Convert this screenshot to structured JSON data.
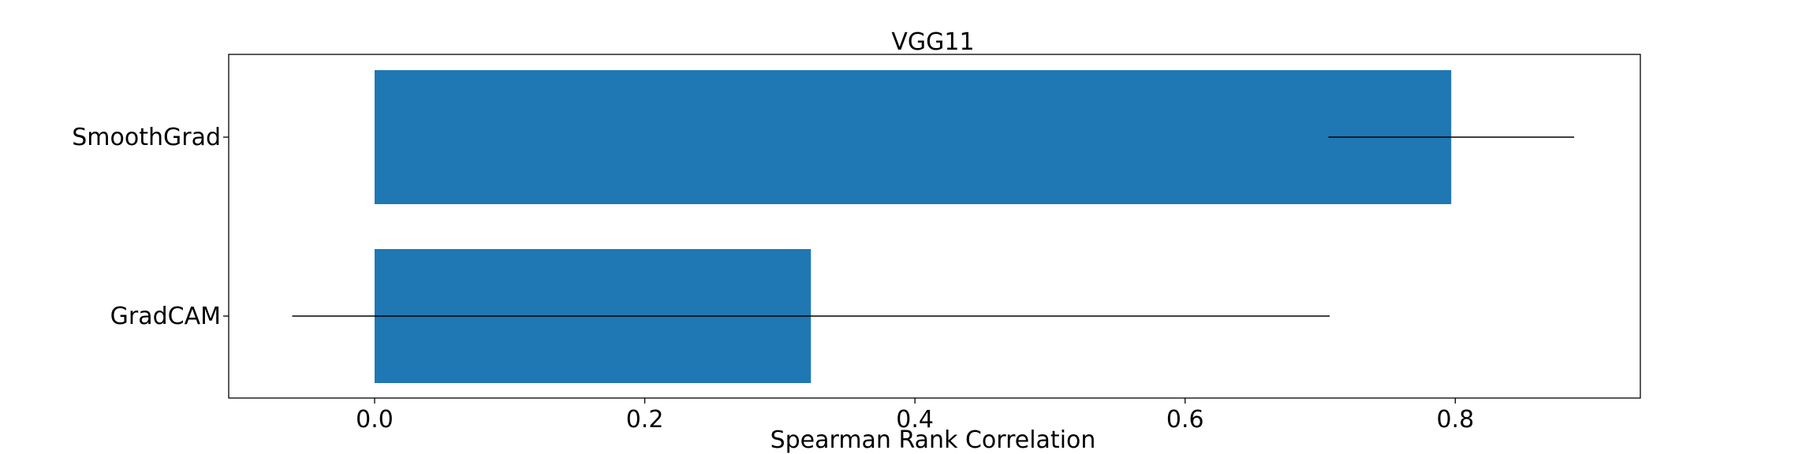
{
  "chart_data": {
    "type": "bar",
    "orientation": "horizontal",
    "title": "VGG11",
    "xlabel": "Spearman Rank Correlation",
    "ylabel": "",
    "categories": [
      "SmoothGrad",
      "GradCAM"
    ],
    "values": [
      0.797,
      0.323
    ],
    "error_bars": [
      {
        "low": 0.706,
        "high": 0.888
      },
      {
        "low": -0.061,
        "high": 0.707
      }
    ],
    "xlim": [
      -0.108,
      0.937
    ],
    "xticks": [
      "0.0",
      "0.2",
      "0.4",
      "0.6",
      "0.8"
    ],
    "bar_color": "#1f77b4",
    "errorbar_color": "#000000",
    "grid": false,
    "legend": "none"
  }
}
